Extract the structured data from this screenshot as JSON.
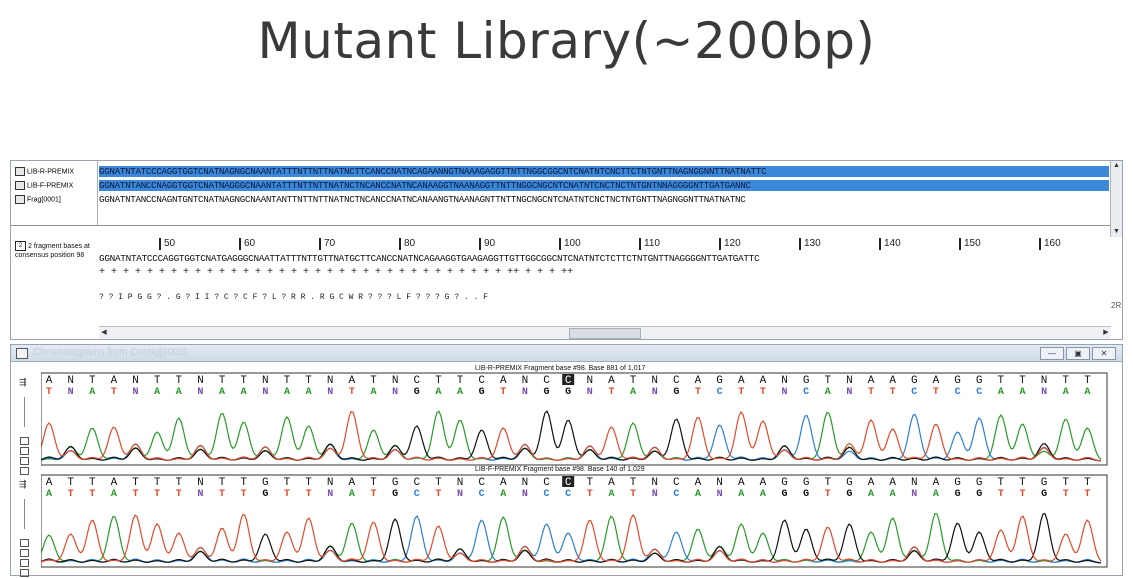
{
  "slide": {
    "title": "Mutant Library(~200bp)"
  },
  "alignment": {
    "reads": [
      {
        "name": "LIB-R-PREMIX",
        "icon": "read-file-icon",
        "sequence": "GGNATNTATCCCAGGTGGTCNATNAGNGCNAANTATTTNTTNTTNATNCTTCANCCNATNCAGAANNGTNAAAGAGGTTNTTNGGCGGCNTCNATNTCNCTTCTNTGNTTNAGNGGNNTTNATNATTC",
        "highlight": true
      },
      {
        "name": "LIB-F-PREMIX",
        "icon": "read-file-icon",
        "sequence": "GGNATNTANCCNAGGTGGTCNATNAGGGCNAANTATTTNTTNTTNATNCTNCANCCNATNCANAAGGTNAANAGGTTNTTNGGCNGCNTCNATNTCNCTNCTNTGNTNNAGGGGNTTGATGANNC",
        "highlight": true
      },
      {
        "name": "Frag[0001]",
        "icon": "fragment-icon",
        "sequence": "GGNATNTANCCNAGNTGNTCNATNAGNGCNAANTANTTNTTNTTNATNCTNCANCCNATNCANAANGTNAANAGNTTNTTNGCNGCNTCNATNTCNCTNCTNTGNTTNAGNGGNTTNATNATNC",
        "highlight": false
      }
    ],
    "consensus": {
      "label_box": "2",
      "label": "2 fragment bases at consensus position 98",
      "ticks": [
        "50",
        "60",
        "70",
        "80",
        "90",
        "100",
        "110",
        "120",
        "130",
        "140",
        "150",
        "160"
      ],
      "sequence": "GGNATNTATCCCAGGTGGTCNATGAGGGCNAATTATTTNTTGTTNATGCTTCANCCNATNCAGAAGGTGAAGAGGTTGTTGGCGGCNTCNATNTCTCTTCTNTGNTTNAGGGGNTTGATGATTC",
      "agreement": "+   +   +   +   +   +   +   +   +   +   +   +   +   +   +   +   +   +   +   +   +   +   +   +   +   +   +   +   +   +   +   +   +   +   ++   +   +   +   ++",
      "translation": "?   ?   I   P   G   G   ?   .   G   ?   I   I   ?   C   ?   C   F   ?   L   ?   R   R   .   R   G   C   W   R   ?   ?   ?   L   F   ?   ?   ?   G   ?   .   .   F"
    },
    "side_markers": "2R"
  },
  "chromatogram": {
    "window_title": "Chromatograms from Contig[0003]",
    "traces": [
      {
        "header": "LIB-R-PREMIX Fragment base #98. Base 881 of 1,017",
        "called_bases": [
          "A",
          "N",
          "T",
          "A",
          "N",
          "T",
          "T",
          "N",
          "T",
          "T",
          "N",
          "T",
          "T",
          "N",
          "A",
          "T",
          "N",
          "C",
          "T",
          "T",
          "C",
          "A",
          "N",
          "C",
          "C",
          "N",
          "A",
          "T",
          "N",
          "C",
          "A",
          "G",
          "A",
          "A",
          "N",
          "G",
          "T",
          "N",
          "A",
          "A",
          "G",
          "A",
          "G",
          "G",
          "T",
          "T",
          "N",
          "T",
          "T"
        ],
        "quality_bases": [
          "T",
          "N",
          "A",
          "T",
          "N",
          "A",
          "A",
          "N",
          "A",
          "A",
          "N",
          "A",
          "A",
          "N",
          "T",
          "A",
          "N",
          "G",
          "A",
          "A",
          "G",
          "T",
          "N",
          "G",
          "G",
          "N",
          "T",
          "A",
          "N",
          "G",
          "T",
          "C",
          "T",
          "T",
          "N",
          "C",
          "A",
          "N",
          "T",
          "T",
          "C",
          "T",
          "C",
          "C",
          "A",
          "A",
          "N",
          "A",
          "A"
        ],
        "highlight_index": 24
      },
      {
        "header": "LIB-F-PREMIX Fragment base #98. Base 140 of 1,029",
        "called_bases": [
          "A",
          "T",
          "T",
          "A",
          "T",
          "T",
          "T",
          "N",
          "T",
          "T",
          "G",
          "T",
          "T",
          "N",
          "A",
          "T",
          "G",
          "C",
          "T",
          "N",
          "C",
          "A",
          "N",
          "C",
          "C",
          "T",
          "A",
          "T",
          "N",
          "C",
          "A",
          "N",
          "A",
          "A",
          "G",
          "G",
          "T",
          "G",
          "A",
          "A",
          "N",
          "A",
          "G",
          "G",
          "T",
          "T",
          "G",
          "T",
          "T"
        ],
        "quality_bases": [
          "A",
          "T",
          "T",
          "A",
          "T",
          "T",
          "T",
          "N",
          "T",
          "T",
          "G",
          "T",
          "T",
          "N",
          "A",
          "T",
          "G",
          "C",
          "T",
          "N",
          "C",
          "A",
          "N",
          "C",
          "C",
          "T",
          "A",
          "T",
          "N",
          "C",
          "A",
          "N",
          "A",
          "A",
          "G",
          "G",
          "T",
          "G",
          "A",
          "A",
          "N",
          "A",
          "G",
          "G",
          "T",
          "T",
          "G",
          "T",
          "T"
        ],
        "highlight_index": 24
      }
    ],
    "base_colors": {
      "A": "#2a9a2a",
      "C": "#2d7fd6",
      "G": "#111111",
      "T": "#e24a2a",
      "N": "#7a4fb0"
    }
  }
}
